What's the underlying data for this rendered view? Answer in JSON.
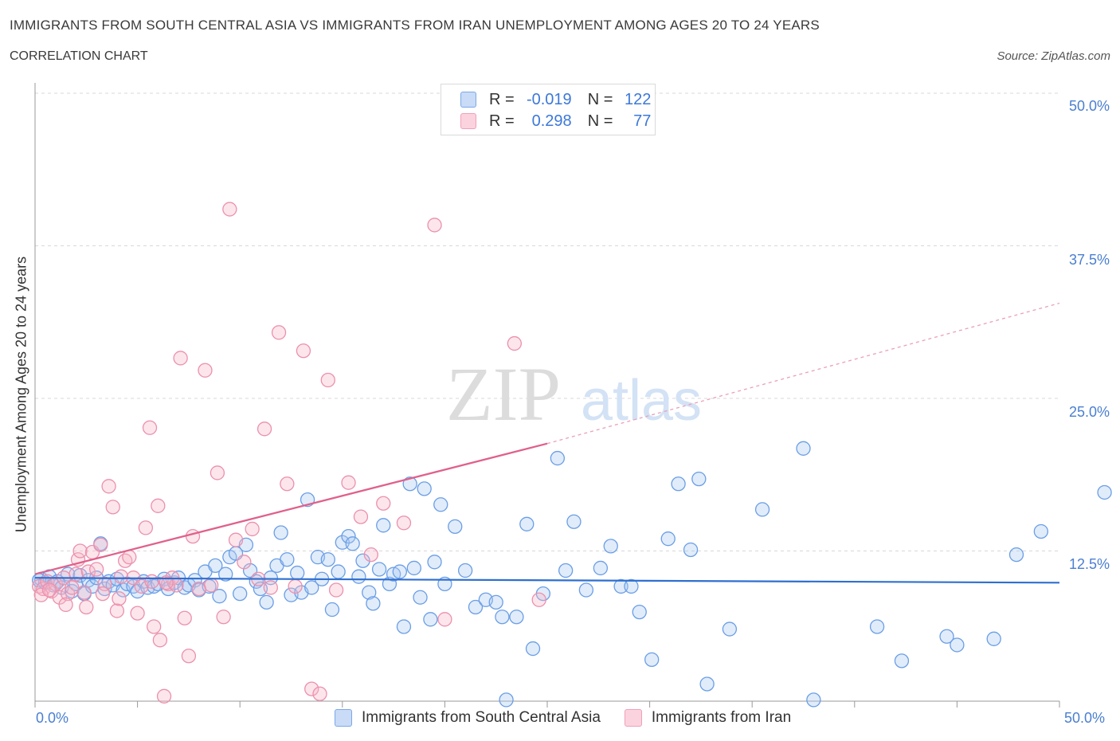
{
  "title": "IMMIGRANTS FROM SOUTH CENTRAL ASIA VS IMMIGRANTS FROM IRAN UNEMPLOYMENT AMONG AGES 20 TO 24 YEARS",
  "subtitle": "CORRELATION CHART",
  "source": "Source: ZipAtlas.com",
  "watermark": {
    "zip": "ZIP",
    "atlas": "atlas"
  },
  "legend": {
    "rows": [
      {
        "r_label": "R =",
        "r_value": "-0.019",
        "n_label": "N =",
        "n_value": "122",
        "color": "#a8c8f0"
      },
      {
        "r_label": "R =",
        "r_value": "0.298",
        "n_label": "N =",
        "n_value": "77",
        "color": "#f6b8c9"
      }
    ]
  },
  "bottom_legend": {
    "series1": "Immigrants from South Central Asia",
    "series2": "Immigrants from Iran"
  },
  "colors": {
    "blue": "#7aa8e8",
    "blue_line": "#2e6fd0",
    "pink": "#f0a0b8",
    "pink_line": "#e0608a",
    "axis_text": "#4a7fd0"
  },
  "chart_data": {
    "type": "scatter",
    "title": "IMMIGRANTS FROM SOUTH CENTRAL ASIA VS IMMIGRANTS FROM IRAN UNEMPLOYMENT AMONG AGES 20 TO 24 YEARS",
    "xlabel": "",
    "ylabel": "Unemployment Among Ages 20 to 24 years",
    "xlim": [
      0,
      50
    ],
    "ylim": [
      0,
      50
    ],
    "x_tick_labels": [
      "0.0%",
      "50.0%"
    ],
    "y_tick_labels": [
      "12.5%",
      "25.0%",
      "37.5%",
      "50.0%"
    ],
    "y_ticks": [
      12.5,
      25,
      37.5,
      50
    ],
    "grid": true,
    "series": [
      {
        "name": "Immigrants from South Central Asia",
        "color": "#7aa8e8",
        "trend": {
          "x": [
            0,
            50
          ],
          "y": [
            10.3,
            9.9
          ],
          "style": "solid"
        },
        "points": [
          [
            0.3,
            10.2
          ],
          [
            0.5,
            9.9
          ],
          [
            0.7,
            10.4
          ],
          [
            0.9,
            9.7
          ],
          [
            1.1,
            10.0
          ],
          [
            1.3,
            9.5
          ],
          [
            1.6,
            10.6
          ],
          [
            1.8,
            9.2
          ],
          [
            2.0,
            9.8
          ],
          [
            2.2,
            10.5
          ],
          [
            2.4,
            9.0
          ],
          [
            2.6,
            10.1
          ],
          [
            2.8,
            9.6
          ],
          [
            3.0,
            10.3
          ],
          [
            3.2,
            13.1
          ],
          [
            3.4,
            9.4
          ],
          [
            3.6,
            10.0
          ],
          [
            3.8,
            9.7
          ],
          [
            4.0,
            10.2
          ],
          [
            4.3,
            9.3
          ],
          [
            4.5,
            9.8
          ],
          [
            4.8,
            9.6
          ],
          [
            5.0,
            9.2
          ],
          [
            5.3,
            10.0
          ],
          [
            5.5,
            9.5
          ],
          [
            5.8,
            9.6
          ],
          [
            6.0,
            9.8
          ],
          [
            6.3,
            10.2
          ],
          [
            6.5,
            9.4
          ],
          [
            6.8,
            9.9
          ],
          [
            7.0,
            10.3
          ],
          [
            7.3,
            9.5
          ],
          [
            7.5,
            9.7
          ],
          [
            7.8,
            10.1
          ],
          [
            8.0,
            9.3
          ],
          [
            8.3,
            10.8
          ],
          [
            8.5,
            9.6
          ],
          [
            8.8,
            11.3
          ],
          [
            9.0,
            8.8
          ],
          [
            9.3,
            10.6
          ],
          [
            9.5,
            12.0
          ],
          [
            9.8,
            12.3
          ],
          [
            10.0,
            9.0
          ],
          [
            10.3,
            13.0
          ],
          [
            10.5,
            10.9
          ],
          [
            10.8,
            10.0
          ],
          [
            11.0,
            9.4
          ],
          [
            11.3,
            8.3
          ],
          [
            11.5,
            10.3
          ],
          [
            11.8,
            11.3
          ],
          [
            12.0,
            14.0
          ],
          [
            12.3,
            11.8
          ],
          [
            12.5,
            8.9
          ],
          [
            12.8,
            10.7
          ],
          [
            13.0,
            9.1
          ],
          [
            13.3,
            16.7
          ],
          [
            13.5,
            9.5
          ],
          [
            13.8,
            12.0
          ],
          [
            14.0,
            10.2
          ],
          [
            14.3,
            11.8
          ],
          [
            14.5,
            7.7
          ],
          [
            14.8,
            10.8
          ],
          [
            15.0,
            13.2
          ],
          [
            15.3,
            13.7
          ],
          [
            15.5,
            13.1
          ],
          [
            15.8,
            10.4
          ],
          [
            16.0,
            11.7
          ],
          [
            16.3,
            9.1
          ],
          [
            16.5,
            8.2
          ],
          [
            16.8,
            11.0
          ],
          [
            17.0,
            14.6
          ],
          [
            17.3,
            9.8
          ],
          [
            17.5,
            10.6
          ],
          [
            17.8,
            10.8
          ],
          [
            18.0,
            6.3
          ],
          [
            18.3,
            18.0
          ],
          [
            18.5,
            11.1
          ],
          [
            18.8,
            8.7
          ],
          [
            19.0,
            17.6
          ],
          [
            19.3,
            6.9
          ],
          [
            19.5,
            11.6
          ],
          [
            19.8,
            16.3
          ],
          [
            20.0,
            9.8
          ],
          [
            20.5,
            14.5
          ],
          [
            21.0,
            10.9
          ],
          [
            21.5,
            7.9
          ],
          [
            22.0,
            8.5
          ],
          [
            22.5,
            8.3
          ],
          [
            22.8,
            7.1
          ],
          [
            23.0,
            0.3
          ],
          [
            23.5,
            7.1
          ],
          [
            24.0,
            14.7
          ],
          [
            24.3,
            4.5
          ],
          [
            24.8,
            9.0
          ],
          [
            25.5,
            20.1
          ],
          [
            25.9,
            10.9
          ],
          [
            26.3,
            14.9
          ],
          [
            26.9,
            9.3
          ],
          [
            27.6,
            11.1
          ],
          [
            28.1,
            12.9
          ],
          [
            28.6,
            9.6
          ],
          [
            29.1,
            9.6
          ],
          [
            29.5,
            7.5
          ],
          [
            30.1,
            3.6
          ],
          [
            30.9,
            13.5
          ],
          [
            31.4,
            18.0
          ],
          [
            32.0,
            12.6
          ],
          [
            32.4,
            18.4
          ],
          [
            32.8,
            1.6
          ],
          [
            33.9,
            6.1
          ],
          [
            35.5,
            15.9
          ],
          [
            37.5,
            20.9
          ],
          [
            38.0,
            0.3
          ],
          [
            41.1,
            6.3
          ],
          [
            42.3,
            3.5
          ],
          [
            44.5,
            5.5
          ],
          [
            45.0,
            4.8
          ],
          [
            46.8,
            5.3
          ],
          [
            47.9,
            12.2
          ],
          [
            49.1,
            14.1
          ],
          [
            52.2,
            17.3
          ],
          [
            0.2,
            10.1
          ]
        ]
      },
      {
        "name": "Immigrants from Iran",
        "color": "#f0a0b8",
        "trend": {
          "x": [
            0,
            25
          ],
          "y": [
            10.6,
            21.3
          ],
          "x_dash": [
            25,
            50
          ],
          "y_dash": [
            21.3,
            32.8
          ]
        },
        "points": [
          [
            0.2,
            9.6
          ],
          [
            0.4,
            9.4
          ],
          [
            0.6,
            10.0
          ],
          [
            0.8,
            9.2
          ],
          [
            1.0,
            9.8
          ],
          [
            1.2,
            8.7
          ],
          [
            1.4,
            10.3
          ],
          [
            1.6,
            9.0
          ],
          [
            1.8,
            9.5
          ],
          [
            2.0,
            10.6
          ],
          [
            2.1,
            11.8
          ],
          [
            2.2,
            12.5
          ],
          [
            2.4,
            9.1
          ],
          [
            2.6,
            10.8
          ],
          [
            2.8,
            12.4
          ],
          [
            3.0,
            11.0
          ],
          [
            3.2,
            13.0
          ],
          [
            3.4,
            9.8
          ],
          [
            3.6,
            17.8
          ],
          [
            3.8,
            16.1
          ],
          [
            4.0,
            7.6
          ],
          [
            4.2,
            10.4
          ],
          [
            4.4,
            11.7
          ],
          [
            4.6,
            12.0
          ],
          [
            4.8,
            10.3
          ],
          [
            5.0,
            7.4
          ],
          [
            5.2,
            9.6
          ],
          [
            5.4,
            14.4
          ],
          [
            5.6,
            22.6
          ],
          [
            5.8,
            6.3
          ],
          [
            6.0,
            16.2
          ],
          [
            6.1,
            5.2
          ],
          [
            6.3,
            0.6
          ],
          [
            6.5,
            9.8
          ],
          [
            6.7,
            10.3
          ],
          [
            6.9,
            9.7
          ],
          [
            7.1,
            28.3
          ],
          [
            7.3,
            7.0
          ],
          [
            7.5,
            3.9
          ],
          [
            7.7,
            13.7
          ],
          [
            8.0,
            9.4
          ],
          [
            8.3,
            27.3
          ],
          [
            8.6,
            9.7
          ],
          [
            8.9,
            18.9
          ],
          [
            9.2,
            7.1
          ],
          [
            9.5,
            40.5
          ],
          [
            9.8,
            13.4
          ],
          [
            10.2,
            11.6
          ],
          [
            10.6,
            14.3
          ],
          [
            10.9,
            10.2
          ],
          [
            11.2,
            22.5
          ],
          [
            11.5,
            9.5
          ],
          [
            11.9,
            30.4
          ],
          [
            12.3,
            18.0
          ],
          [
            12.7,
            9.6
          ],
          [
            13.1,
            28.9
          ],
          [
            13.5,
            1.2
          ],
          [
            13.9,
            0.8
          ],
          [
            14.3,
            26.5
          ],
          [
            14.7,
            9.3
          ],
          [
            15.3,
            18.1
          ],
          [
            15.9,
            15.3
          ],
          [
            16.4,
            12.2
          ],
          [
            17.0,
            16.4
          ],
          [
            18.0,
            14.8
          ],
          [
            19.5,
            39.2
          ],
          [
            20.0,
            6.9
          ],
          [
            23.4,
            29.5
          ],
          [
            24.6,
            8.5
          ],
          [
            0.3,
            8.9
          ],
          [
            0.7,
            9.3
          ],
          [
            1.5,
            8.1
          ],
          [
            2.5,
            7.9
          ],
          [
            3.3,
            9.0
          ],
          [
            4.1,
            8.6
          ],
          [
            5.7,
            10.0
          ],
          [
            6.4,
            9.9
          ]
        ]
      }
    ]
  }
}
